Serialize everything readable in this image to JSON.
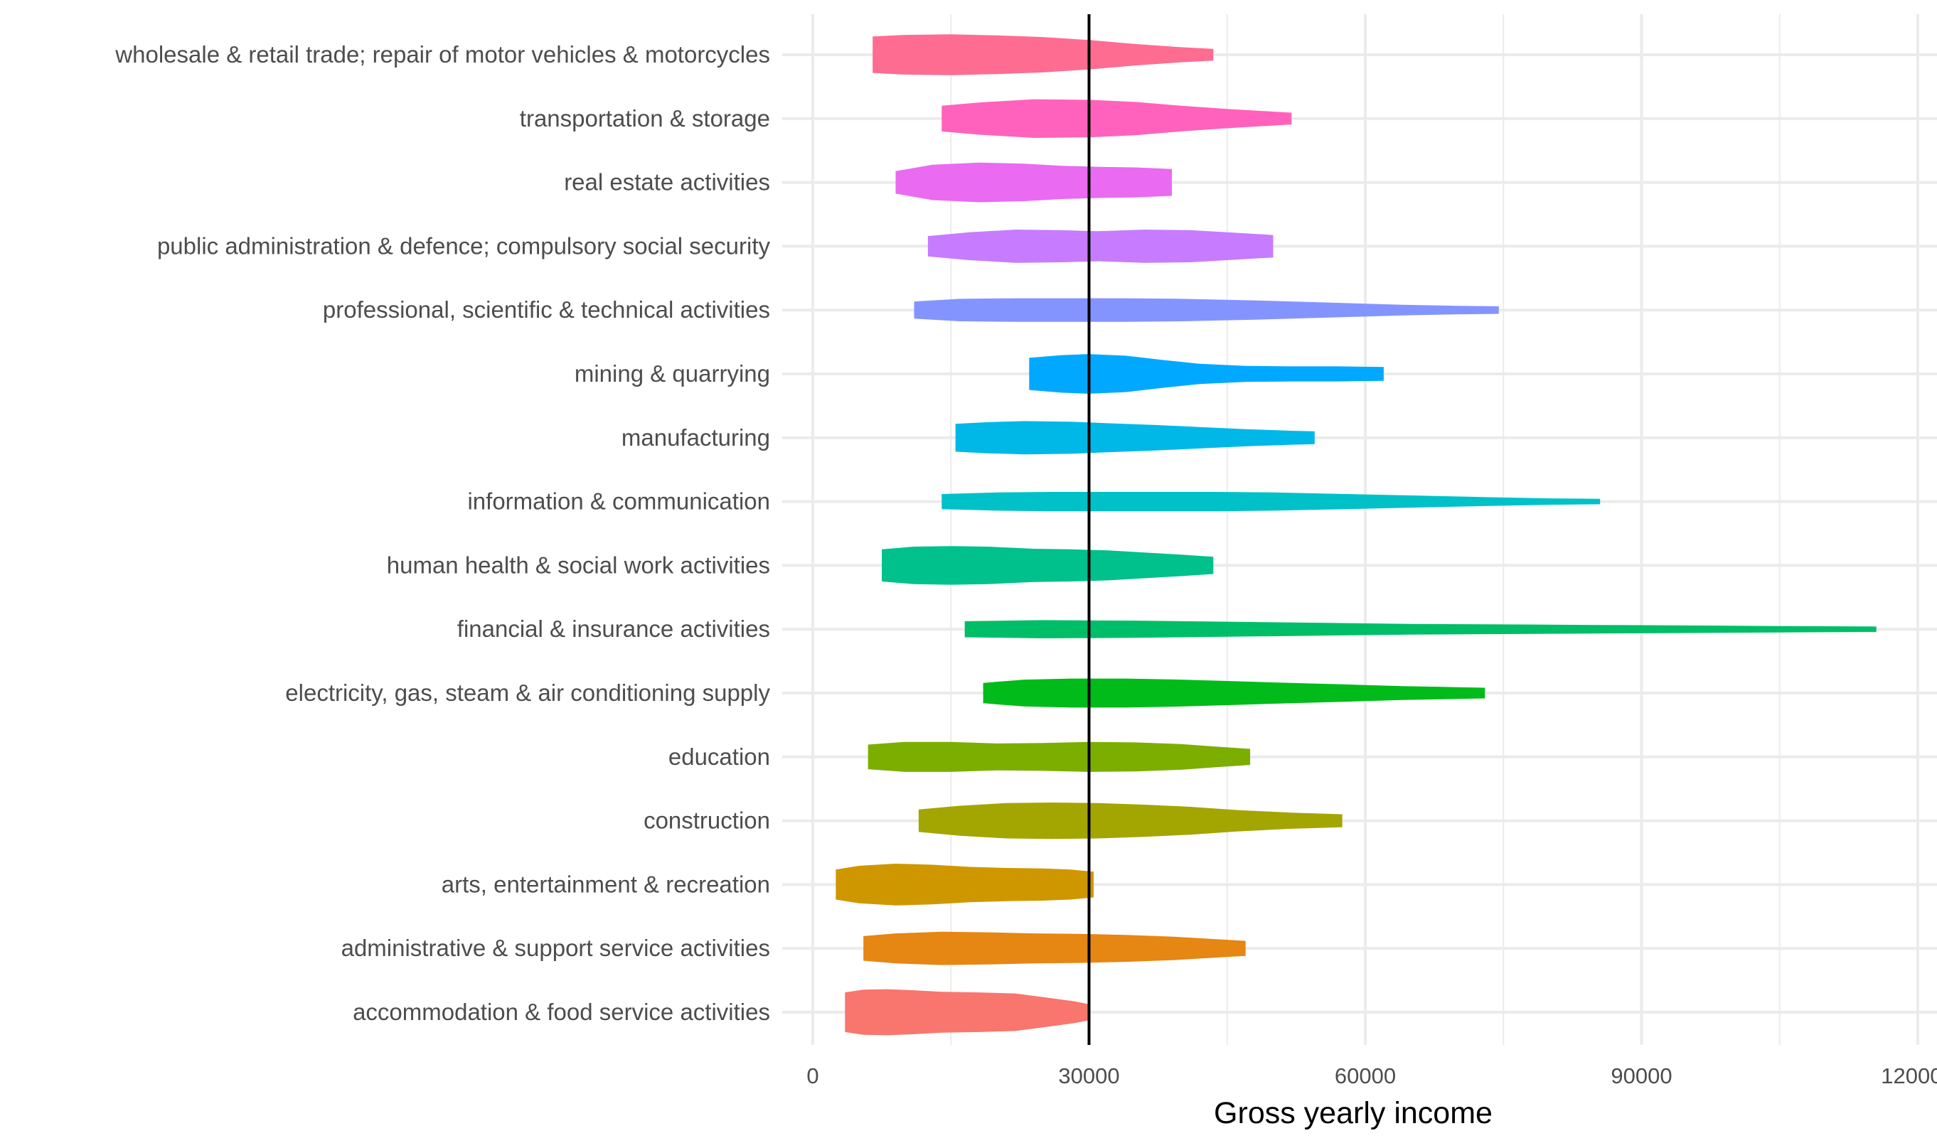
{
  "chart_data": {
    "type": "violin",
    "orientation": "horizontal",
    "xlabel": "Gross yearly income",
    "ylabel": "",
    "xlim": [
      -2500,
      120000
    ],
    "x_ticks": [
      0,
      30000,
      60000,
      90000,
      120000
    ],
    "x_tick_labels": [
      "0",
      "30000",
      "60000",
      "90000",
      "120000"
    ],
    "reference_line": 30000,
    "grid": true,
    "legend": "none",
    "series": [
      {
        "category": "wholesale & retail trade; repair of motor vehicles & motorcycles",
        "color": "#FF6C91",
        "min": 6500,
        "max": 43500,
        "profile": [
          [
            6500,
            0.68
          ],
          [
            10000,
            0.74
          ],
          [
            15000,
            0.76
          ],
          [
            20000,
            0.72
          ],
          [
            25000,
            0.66
          ],
          [
            30000,
            0.55
          ],
          [
            35000,
            0.4
          ],
          [
            40000,
            0.28
          ],
          [
            43500,
            0.22
          ]
        ]
      },
      {
        "category": "transportation & storage",
        "color": "#FF62BC",
        "min": 14000,
        "max": 52000,
        "profile": [
          [
            14000,
            0.48
          ],
          [
            18000,
            0.6
          ],
          [
            24000,
            0.72
          ],
          [
            30000,
            0.7
          ],
          [
            35000,
            0.62
          ],
          [
            40000,
            0.48
          ],
          [
            45000,
            0.36
          ],
          [
            50000,
            0.26
          ],
          [
            52000,
            0.22
          ]
        ]
      },
      {
        "category": "real estate activities",
        "color": "#EA6AF1",
        "min": 9000,
        "max": 39000,
        "profile": [
          [
            9000,
            0.42
          ],
          [
            13000,
            0.66
          ],
          [
            18000,
            0.74
          ],
          [
            23000,
            0.7
          ],
          [
            27000,
            0.62
          ],
          [
            31000,
            0.58
          ],
          [
            35000,
            0.56
          ],
          [
            39000,
            0.5
          ]
        ]
      },
      {
        "category": "public administration & defence; compulsory social security",
        "color": "#C77CFF",
        "min": 12500,
        "max": 50000,
        "profile": [
          [
            12500,
            0.38
          ],
          [
            17000,
            0.52
          ],
          [
            22000,
            0.62
          ],
          [
            27000,
            0.6
          ],
          [
            31000,
            0.56
          ],
          [
            36000,
            0.62
          ],
          [
            41000,
            0.6
          ],
          [
            46000,
            0.5
          ],
          [
            50000,
            0.42
          ]
        ]
      },
      {
        "category": "professional, scientific & technical activities",
        "color": "#8494FF",
        "min": 11000,
        "max": 74500,
        "profile": [
          [
            11000,
            0.32
          ],
          [
            16000,
            0.42
          ],
          [
            22000,
            0.44
          ],
          [
            28000,
            0.44
          ],
          [
            34000,
            0.44
          ],
          [
            40000,
            0.42
          ],
          [
            48000,
            0.36
          ],
          [
            56000,
            0.28
          ],
          [
            64000,
            0.2
          ],
          [
            70000,
            0.16
          ],
          [
            74500,
            0.14
          ]
        ]
      },
      {
        "category": "mining & quarrying",
        "color": "#00A9FF",
        "min": 23500,
        "max": 62000,
        "profile": [
          [
            23500,
            0.6
          ],
          [
            27000,
            0.7
          ],
          [
            30000,
            0.74
          ],
          [
            34000,
            0.68
          ],
          [
            38000,
            0.52
          ],
          [
            42000,
            0.38
          ],
          [
            47000,
            0.3
          ],
          [
            52000,
            0.28
          ],
          [
            57000,
            0.28
          ],
          [
            62000,
            0.26
          ]
        ]
      },
      {
        "category": "manufacturing",
        "color": "#00B8E7",
        "min": 15500,
        "max": 54500,
        "profile": [
          [
            15500,
            0.52
          ],
          [
            19000,
            0.58
          ],
          [
            23000,
            0.62
          ],
          [
            28000,
            0.6
          ],
          [
            32000,
            0.54
          ],
          [
            37000,
            0.48
          ],
          [
            42000,
            0.4
          ],
          [
            47000,
            0.32
          ],
          [
            52000,
            0.26
          ],
          [
            54500,
            0.24
          ]
        ]
      },
      {
        "category": "information & communication",
        "color": "#00C1C8",
        "min": 14000,
        "max": 85500,
        "profile": [
          [
            14000,
            0.28
          ],
          [
            20000,
            0.34
          ],
          [
            26000,
            0.36
          ],
          [
            32000,
            0.36
          ],
          [
            38000,
            0.36
          ],
          [
            44000,
            0.36
          ],
          [
            50000,
            0.34
          ],
          [
            58000,
            0.28
          ],
          [
            66000,
            0.22
          ],
          [
            74000,
            0.16
          ],
          [
            80000,
            0.12
          ],
          [
            85500,
            0.1
          ]
        ]
      },
      {
        "category": "human health & social work activities",
        "color": "#00C08B",
        "min": 7500,
        "max": 43500,
        "profile": [
          [
            7500,
            0.6
          ],
          [
            11000,
            0.7
          ],
          [
            15000,
            0.72
          ],
          [
            19000,
            0.7
          ],
          [
            24000,
            0.62
          ],
          [
            28000,
            0.6
          ],
          [
            32000,
            0.56
          ],
          [
            36000,
            0.48
          ],
          [
            40000,
            0.4
          ],
          [
            43500,
            0.32
          ]
        ]
      },
      {
        "category": "financial & insurance activities",
        "color": "#00BE67",
        "min": 16500,
        "max": 115500,
        "profile": [
          [
            16500,
            0.3
          ],
          [
            25000,
            0.34
          ],
          [
            35000,
            0.32
          ],
          [
            45000,
            0.28
          ],
          [
            55000,
            0.24
          ],
          [
            65000,
            0.2
          ],
          [
            75000,
            0.18
          ],
          [
            85000,
            0.16
          ],
          [
            95000,
            0.14
          ],
          [
            105000,
            0.12
          ],
          [
            115500,
            0.1
          ]
        ]
      },
      {
        "category": "electricity, gas, steam & air conditioning supply",
        "color": "#00BB19",
        "min": 18500,
        "max": 73000,
        "profile": [
          [
            18500,
            0.38
          ],
          [
            23000,
            0.5
          ],
          [
            28000,
            0.54
          ],
          [
            34000,
            0.54
          ],
          [
            40000,
            0.5
          ],
          [
            46000,
            0.44
          ],
          [
            52000,
            0.38
          ],
          [
            58000,
            0.32
          ],
          [
            64000,
            0.26
          ],
          [
            70000,
            0.22
          ],
          [
            73000,
            0.2
          ]
        ]
      },
      {
        "category": "education",
        "color": "#7CAE00",
        "min": 6000,
        "max": 47500,
        "profile": [
          [
            6000,
            0.46
          ],
          [
            10000,
            0.56
          ],
          [
            15000,
            0.56
          ],
          [
            20000,
            0.5
          ],
          [
            25000,
            0.52
          ],
          [
            30000,
            0.56
          ],
          [
            35000,
            0.54
          ],
          [
            40000,
            0.48
          ],
          [
            44000,
            0.38
          ],
          [
            47500,
            0.3
          ]
        ]
      },
      {
        "category": "construction",
        "color": "#A3A500",
        "min": 11500,
        "max": 57500,
        "profile": [
          [
            11500,
            0.42
          ],
          [
            16000,
            0.56
          ],
          [
            21000,
            0.66
          ],
          [
            26000,
            0.68
          ],
          [
            31000,
            0.66
          ],
          [
            36000,
            0.6
          ],
          [
            41000,
            0.52
          ],
          [
            46000,
            0.4
          ],
          [
            52000,
            0.3
          ],
          [
            57500,
            0.24
          ]
        ]
      },
      {
        "category": "arts, entertainment & recreation",
        "color": "#CE9700",
        "min": 2500,
        "max": 30500,
        "profile": [
          [
            2500,
            0.56
          ],
          [
            5000,
            0.7
          ],
          [
            9000,
            0.78
          ],
          [
            13000,
            0.74
          ],
          [
            17000,
            0.66
          ],
          [
            21000,
            0.62
          ],
          [
            25000,
            0.6
          ],
          [
            28000,
            0.56
          ],
          [
            30500,
            0.48
          ]
        ]
      },
      {
        "category": "administrative & support service activities",
        "color": "#E68613",
        "min": 5500,
        "max": 47000,
        "profile": [
          [
            5500,
            0.46
          ],
          [
            9000,
            0.56
          ],
          [
            14000,
            0.62
          ],
          [
            19000,
            0.6
          ],
          [
            24000,
            0.56
          ],
          [
            29000,
            0.54
          ],
          [
            34000,
            0.5
          ],
          [
            39000,
            0.44
          ],
          [
            43000,
            0.36
          ],
          [
            47000,
            0.28
          ]
        ]
      },
      {
        "category": "accommodation & food service activities",
        "color": "#F8766D",
        "min": 3500,
        "max": 30000,
        "profile": [
          [
            3500,
            0.74
          ],
          [
            5500,
            0.84
          ],
          [
            8000,
            0.86
          ],
          [
            11000,
            0.82
          ],
          [
            14000,
            0.76
          ],
          [
            18000,
            0.74
          ],
          [
            22000,
            0.7
          ],
          [
            26000,
            0.52
          ],
          [
            28500,
            0.4
          ],
          [
            30000,
            0.3
          ]
        ]
      }
    ]
  }
}
